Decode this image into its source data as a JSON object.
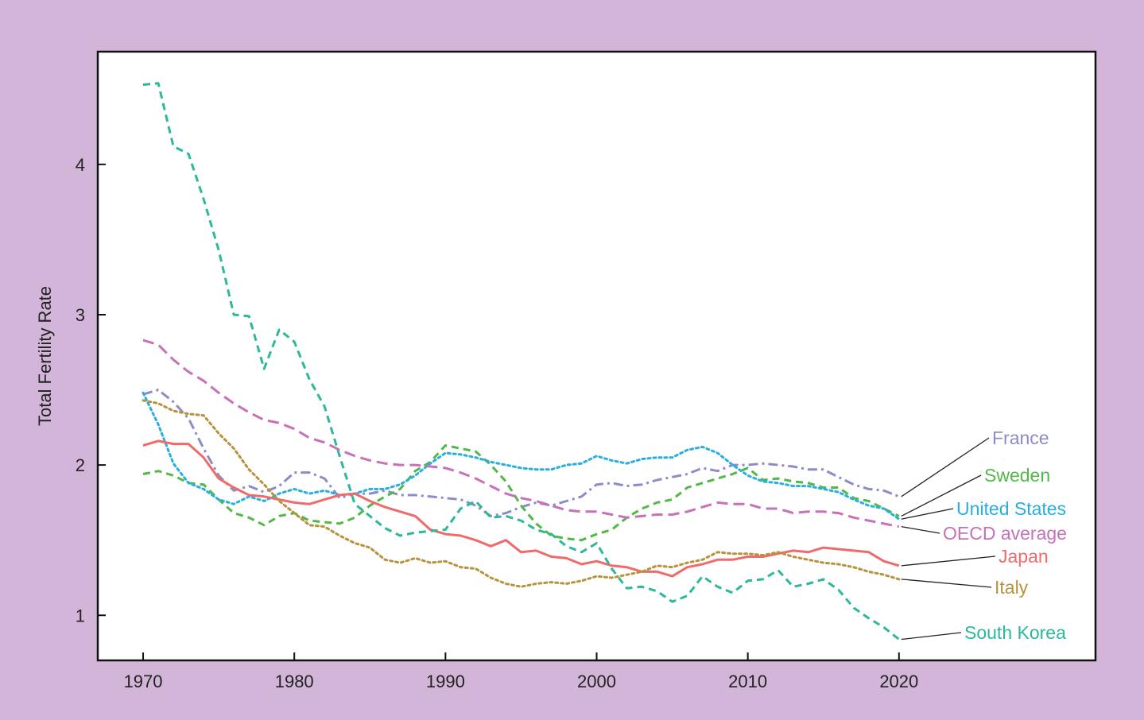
{
  "chart_data": {
    "type": "line",
    "title": "",
    "xlabel": "",
    "ylabel": "Total Fertility Rate",
    "xlim": [
      1967,
      2033
    ],
    "ylim": [
      0.7,
      4.75
    ],
    "xticks": [
      1970,
      1980,
      1990,
      2000,
      2010,
      2020
    ],
    "yticks": [
      1,
      2,
      3,
      4
    ],
    "grid": false,
    "legend": "direct labels at right end of lines",
    "x_start": 1970,
    "series": [
      {
        "name": "France",
        "color": "#8c8cc8",
        "dash": "dashdot",
        "values": [
          2.47,
          2.5,
          2.42,
          2.31,
          2.11,
          1.93,
          1.83,
          1.86,
          1.82,
          1.86,
          1.95,
          1.95,
          1.91,
          1.78,
          1.81,
          1.81,
          1.83,
          1.8,
          1.8,
          1.79,
          1.78,
          1.77,
          1.73,
          1.66,
          1.68,
          1.72,
          1.75,
          1.73,
          1.76,
          1.79,
          1.87,
          1.88,
          1.86,
          1.87,
          1.9,
          1.92,
          1.94,
          1.98,
          1.96,
          2.0,
          2.0,
          2.01,
          2.0,
          1.99,
          1.97,
          1.97,
          1.92,
          1.87,
          1.84,
          1.83,
          1.79
        ]
      },
      {
        "name": "Sweden",
        "color": "#52b848",
        "dash": "dashed",
        "values": [
          1.94,
          1.96,
          1.93,
          1.88,
          1.87,
          1.77,
          1.68,
          1.65,
          1.6,
          1.66,
          1.68,
          1.63,
          1.62,
          1.61,
          1.65,
          1.73,
          1.79,
          1.84,
          1.96,
          2.02,
          2.13,
          2.11,
          2.09,
          2.0,
          1.89,
          1.73,
          1.61,
          1.53,
          1.51,
          1.5,
          1.54,
          1.57,
          1.65,
          1.71,
          1.75,
          1.77,
          1.85,
          1.88,
          1.91,
          1.94,
          1.98,
          1.9,
          1.91,
          1.89,
          1.88,
          1.85,
          1.85,
          1.78,
          1.76,
          1.71,
          1.66
        ]
      },
      {
        "name": "United States",
        "color": "#29aee0",
        "dash": "dotted",
        "values": [
          2.48,
          2.27,
          2.01,
          1.88,
          1.84,
          1.77,
          1.74,
          1.79,
          1.76,
          1.81,
          1.84,
          1.81,
          1.83,
          1.8,
          1.81,
          1.84,
          1.84,
          1.87,
          1.93,
          2.01,
          2.08,
          2.07,
          2.05,
          2.02,
          2.0,
          1.98,
          1.97,
          1.97,
          2.0,
          2.01,
          2.06,
          2.03,
          2.01,
          2.04,
          2.05,
          2.05,
          2.1,
          2.12,
          2.08,
          2.0,
          1.93,
          1.89,
          1.88,
          1.86,
          1.86,
          1.84,
          1.82,
          1.77,
          1.73,
          1.71,
          1.64
        ]
      },
      {
        "name": "OECD average",
        "color": "#c870b8",
        "dash": "longdash",
        "values": [
          2.83,
          2.8,
          2.7,
          2.62,
          2.56,
          2.48,
          2.41,
          2.35,
          2.3,
          2.28,
          2.24,
          2.18,
          2.15,
          2.1,
          2.06,
          2.03,
          2.01,
          2.0,
          2.0,
          1.99,
          1.98,
          1.95,
          1.91,
          1.86,
          1.81,
          1.78,
          1.76,
          1.73,
          1.7,
          1.69,
          1.69,
          1.67,
          1.65,
          1.66,
          1.67,
          1.67,
          1.69,
          1.72,
          1.75,
          1.74,
          1.74,
          1.71,
          1.71,
          1.68,
          1.69,
          1.69,
          1.68,
          1.65,
          1.63,
          1.61,
          1.59
        ]
      },
      {
        "name": "Japan",
        "color": "#ef6b6b",
        "dash": "solid",
        "values": [
          2.13,
          2.16,
          2.14,
          2.14,
          2.05,
          1.91,
          1.85,
          1.8,
          1.79,
          1.77,
          1.75,
          1.74,
          1.77,
          1.8,
          1.81,
          1.76,
          1.72,
          1.69,
          1.66,
          1.57,
          1.54,
          1.53,
          1.5,
          1.46,
          1.5,
          1.42,
          1.43,
          1.39,
          1.38,
          1.34,
          1.36,
          1.33,
          1.32,
          1.29,
          1.29,
          1.26,
          1.32,
          1.34,
          1.37,
          1.37,
          1.39,
          1.39,
          1.41,
          1.43,
          1.42,
          1.45,
          1.44,
          1.43,
          1.42,
          1.36,
          1.33
        ]
      },
      {
        "name": "Italy",
        "color": "#b8923c",
        "dash": "dotted",
        "values": [
          2.43,
          2.41,
          2.36,
          2.34,
          2.33,
          2.21,
          2.11,
          1.97,
          1.87,
          1.76,
          1.68,
          1.6,
          1.59,
          1.53,
          1.48,
          1.45,
          1.37,
          1.35,
          1.38,
          1.35,
          1.36,
          1.32,
          1.31,
          1.25,
          1.21,
          1.19,
          1.21,
          1.22,
          1.21,
          1.23,
          1.26,
          1.25,
          1.27,
          1.29,
          1.33,
          1.32,
          1.35,
          1.37,
          1.42,
          1.41,
          1.41,
          1.4,
          1.42,
          1.39,
          1.37,
          1.35,
          1.34,
          1.32,
          1.29,
          1.27,
          1.24
        ]
      },
      {
        "name": "South Korea",
        "color": "#2cb899",
        "dash": "dashed",
        "values": [
          4.53,
          4.54,
          4.12,
          4.07,
          3.77,
          3.43,
          3.0,
          2.99,
          2.64,
          2.9,
          2.82,
          2.57,
          2.39,
          2.06,
          1.74,
          1.66,
          1.58,
          1.53,
          1.55,
          1.56,
          1.57,
          1.71,
          1.76,
          1.65,
          1.66,
          1.63,
          1.57,
          1.54,
          1.46,
          1.42,
          1.48,
          1.31,
          1.18,
          1.19,
          1.16,
          1.09,
          1.13,
          1.26,
          1.19,
          1.15,
          1.23,
          1.24,
          1.3,
          1.19,
          1.21,
          1.24,
          1.17,
          1.05,
          0.98,
          0.92,
          0.84
        ]
      }
    ]
  }
}
